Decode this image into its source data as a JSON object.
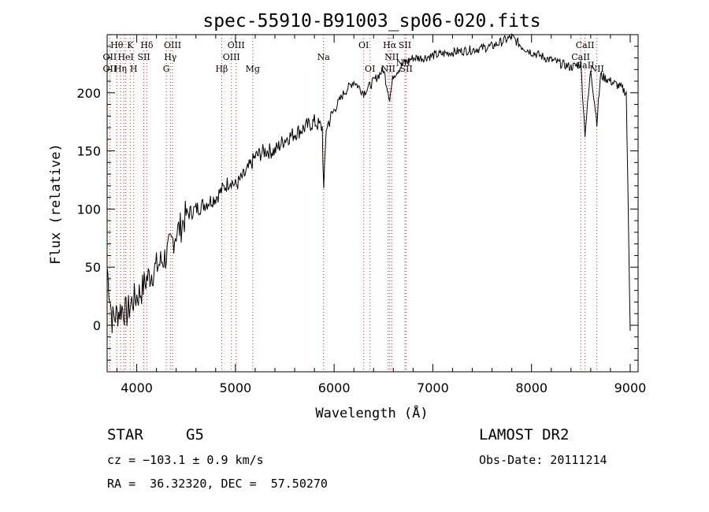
{
  "chart_data": {
    "type": "line",
    "title": "spec-55910-B91003_sp06-020.fits",
    "xlabel": "Wavelength (Å)",
    "ylabel": "Flux (relative)",
    "xlim": [
      3700,
      9080
    ],
    "ylim": [
      -40,
      250
    ],
    "xticks": [
      4000,
      5000,
      6000,
      7000,
      8000,
      9000
    ],
    "yticks": [
      0,
      50,
      100,
      150,
      200
    ],
    "grid": false,
    "series": [
      {
        "x": [
          3700,
          3750,
          3800,
          3850,
          3900,
          3950,
          4000,
          4050,
          4100,
          4150,
          4200,
          4250,
          4300,
          4350,
          4400,
          4450,
          4500,
          4600,
          4700,
          4800,
          4850,
          4900,
          4950,
          5000,
          5100,
          5200,
          5300,
          5400,
          5500,
          5600,
          5700,
          5800,
          5880,
          5895,
          5920,
          6000,
          6100,
          6200,
          6300,
          6400,
          6500,
          6563,
          6600,
          6700,
          6800,
          6900,
          7000,
          7200,
          7400,
          7600,
          7800,
          7900,
          8000,
          8200,
          8400,
          8500,
          8542,
          8600,
          8662,
          8700,
          8800,
          8900,
          8960,
          9000
        ],
        "y": [
          50,
          5,
          10,
          15,
          10,
          20,
          25,
          30,
          40,
          45,
          50,
          55,
          60,
          70,
          80,
          85,
          95,
          100,
          105,
          110,
          115,
          120,
          125,
          120,
          130,
          145,
          150,
          150,
          160,
          165,
          170,
          175,
          170,
          115,
          170,
          185,
          200,
          210,
          200,
          210,
          220,
          195,
          215,
          225,
          230,
          230,
          232,
          235,
          237,
          240,
          248,
          240,
          235,
          228,
          222,
          225,
          165,
          220,
          175,
          215,
          210,
          205,
          200,
          -5
        ]
      }
    ],
    "annotations": [
      "Hθ",
      "K",
      "Hδ",
      "OII",
      "HeI",
      "SII",
      "OII",
      "Hη",
      "H",
      "OIII",
      "Hγ",
      "G",
      "OIII",
      "OIII",
      "Hβ",
      "Mg",
      "Na",
      "OI",
      "OI",
      "Hα",
      "SII",
      "NII",
      "NII",
      "SII",
      "NII",
      "CaII",
      "CaII",
      "CaII",
      "NII"
    ]
  },
  "footer": {
    "object_type": "STAR",
    "subclass": "G5",
    "survey": "LAMOST DR2",
    "cz": "cz = −103.1 ± 0.9 km/s",
    "obs_date": "Obs-Date: 20111214",
    "coords": "RA =  36.32320, DEC =  57.50270"
  },
  "colors": {
    "spectrum": "#000000",
    "line_markers": "#d62728"
  }
}
